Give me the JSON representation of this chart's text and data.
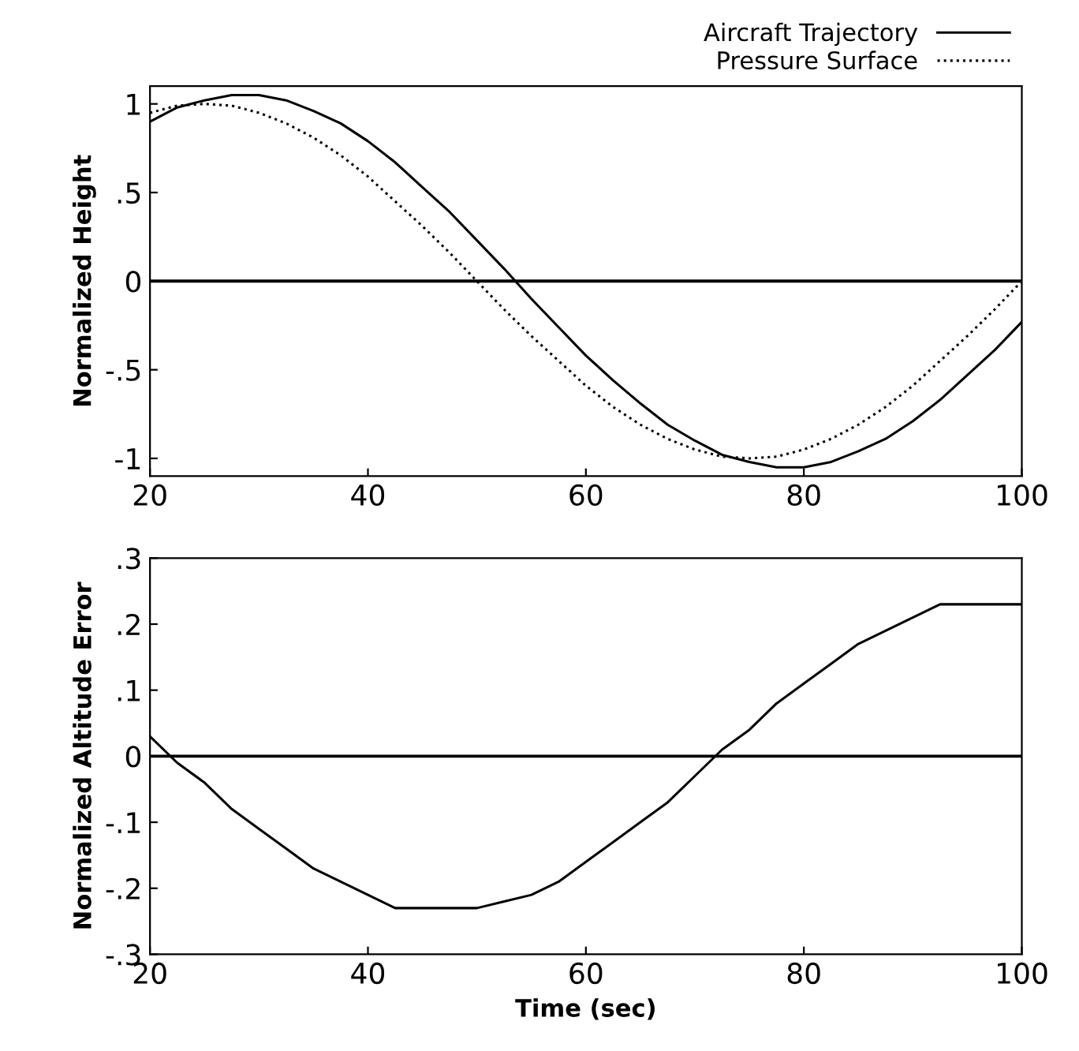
{
  "chart_data": [
    {
      "type": "line",
      "ylabel": "Normalized Height",
      "x": [
        20,
        22.5,
        25,
        27.5,
        30,
        32.5,
        35,
        37.5,
        40,
        42.5,
        45,
        47.5,
        50,
        52.5,
        55,
        57.5,
        60,
        62.5,
        65,
        67.5,
        70,
        72.5,
        75,
        77.5,
        80,
        82.5,
        85,
        87.5,
        90,
        92.5,
        95,
        97.5,
        100
      ],
      "series": [
        {
          "name": "Aircraft Trajectory",
          "color": "#000000",
          "line_style": "solid",
          "values": [
            0.9,
            0.98,
            1.02,
            1.05,
            1.05,
            1.02,
            0.96,
            0.89,
            0.79,
            0.67,
            0.53,
            0.39,
            0.23,
            0.07,
            -0.1,
            -0.26,
            -0.42,
            -0.56,
            -0.69,
            -0.81,
            -0.9,
            -0.98,
            -1.02,
            -1.05,
            -1.05,
            -1.02,
            -0.96,
            -0.89,
            -0.79,
            -0.67,
            -0.53,
            -0.39,
            -0.23
          ]
        },
        {
          "name": "Pressure Surface",
          "color": "#000000",
          "line_style": "dotted",
          "values": [
            0.95,
            0.99,
            1.0,
            0.99,
            0.95,
            0.89,
            0.81,
            0.71,
            0.59,
            0.45,
            0.31,
            0.16,
            0.0,
            -0.16,
            -0.31,
            -0.45,
            -0.59,
            -0.71,
            -0.81,
            -0.89,
            -0.95,
            -0.99,
            -1.0,
            -0.99,
            -0.95,
            -0.89,
            -0.81,
            -0.71,
            -0.59,
            -0.45,
            -0.31,
            -0.16,
            0.0
          ]
        }
      ],
      "xlim": [
        20,
        100
      ],
      "xticks": [
        20,
        40,
        60,
        80,
        100
      ],
      "ylim": [
        -1.1,
        1.1
      ],
      "yticks": [
        {
          "value": -1,
          "label": "-1"
        },
        {
          "value": -0.5,
          "label": "-.5"
        },
        0,
        {
          "value": 0.5,
          "label": ".5"
        },
        1
      ],
      "ref_lines": [
        {
          "axis": "y",
          "value": 0,
          "color": "#000000"
        }
      ],
      "legend": "top right",
      "grid": false
    },
    {
      "type": "line",
      "ylabel": "Normalized Altitude Error",
      "xlabel": "Time (sec)",
      "x": [
        20,
        22.5,
        25,
        27.5,
        30,
        32.5,
        35,
        37.5,
        40,
        42.5,
        45,
        47.5,
        50,
        52.5,
        55,
        57.5,
        60,
        62.5,
        65,
        67.5,
        70,
        72.5,
        75,
        77.5,
        80,
        82.5,
        85,
        87.5,
        90,
        92.5,
        95,
        97.5,
        100
      ],
      "series": [
        {
          "color": "#000000",
          "line_style": "solid",
          "values": [
            0.03,
            -0.01,
            -0.04,
            -0.08,
            -0.11,
            -0.14,
            -0.17,
            -0.19,
            -0.21,
            -0.23,
            -0.23,
            -0.23,
            -0.23,
            -0.22,
            -0.21,
            -0.19,
            -0.16,
            -0.13,
            -0.1,
            -0.07,
            -0.03,
            0.01,
            0.04,
            0.08,
            0.11,
            0.14,
            0.17,
            0.19,
            0.21,
            0.23,
            0.23,
            0.23,
            0.23
          ]
        }
      ],
      "xlim": [
        20,
        100
      ],
      "xticks": [
        20,
        40,
        60,
        80,
        100
      ],
      "ylim": [
        -0.3,
        0.3
      ],
      "yticks": [
        {
          "value": -0.3,
          "label": "-.3"
        },
        {
          "value": -0.2,
          "label": "-.2"
        },
        {
          "value": -0.1,
          "label": "-.1"
        },
        0,
        {
          "value": 0.1,
          "label": ".1"
        },
        {
          "value": 0.2,
          "label": ".2"
        },
        {
          "value": 0.3,
          "label": ".3"
        }
      ],
      "ref_lines": [
        {
          "axis": "y",
          "value": 0,
          "color": "#000000"
        }
      ],
      "grid": false
    }
  ]
}
